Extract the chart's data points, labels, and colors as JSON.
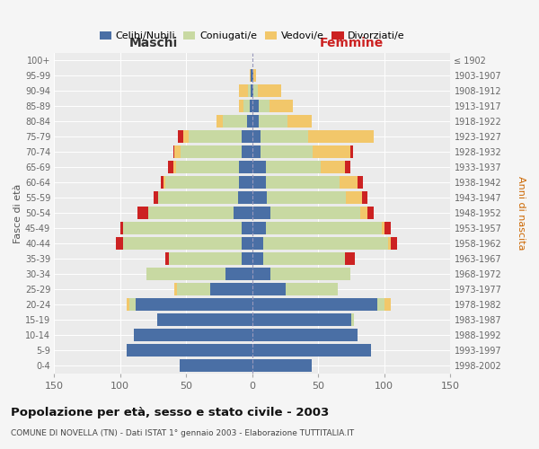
{
  "age_groups": [
    "0-4",
    "5-9",
    "10-14",
    "15-19",
    "20-24",
    "25-29",
    "30-34",
    "35-39",
    "40-44",
    "45-49",
    "50-54",
    "55-59",
    "60-64",
    "65-69",
    "70-74",
    "75-79",
    "80-84",
    "85-89",
    "90-94",
    "95-99",
    "100+"
  ],
  "birth_years": [
    "1998-2002",
    "1993-1997",
    "1988-1992",
    "1983-1987",
    "1978-1982",
    "1973-1977",
    "1968-1972",
    "1963-1967",
    "1958-1962",
    "1953-1957",
    "1948-1952",
    "1943-1947",
    "1938-1942",
    "1933-1937",
    "1928-1932",
    "1923-1927",
    "1918-1922",
    "1913-1917",
    "1908-1912",
    "1903-1907",
    "≤ 1902"
  ],
  "maschi": {
    "celibe": [
      55,
      95,
      90,
      72,
      88,
      32,
      20,
      8,
      8,
      8,
      14,
      11,
      10,
      10,
      8,
      8,
      4,
      2,
      1,
      1,
      0
    ],
    "coniugato": [
      0,
      0,
      0,
      0,
      5,
      25,
      60,
      55,
      90,
      90,
      65,
      60,
      56,
      48,
      46,
      40,
      18,
      5,
      2,
      0,
      0
    ],
    "vedovo": [
      0,
      0,
      0,
      0,
      2,
      2,
      0,
      0,
      0,
      0,
      0,
      0,
      1,
      2,
      5,
      4,
      5,
      3,
      7,
      1,
      0
    ],
    "divorziato": [
      0,
      0,
      0,
      0,
      0,
      0,
      0,
      3,
      5,
      2,
      8,
      4,
      2,
      4,
      1,
      4,
      0,
      0,
      0,
      0,
      0
    ]
  },
  "femmine": {
    "nubile": [
      45,
      90,
      80,
      75,
      95,
      25,
      14,
      8,
      8,
      10,
      14,
      11,
      10,
      10,
      6,
      6,
      5,
      5,
      1,
      1,
      0
    ],
    "coniugata": [
      0,
      0,
      0,
      2,
      5,
      40,
      60,
      62,
      95,
      88,
      68,
      60,
      56,
      42,
      40,
      36,
      22,
      8,
      3,
      0,
      0
    ],
    "vedova": [
      0,
      0,
      0,
      0,
      5,
      0,
      0,
      0,
      2,
      2,
      5,
      12,
      14,
      18,
      28,
      50,
      18,
      18,
      18,
      2,
      0
    ],
    "divorziata": [
      0,
      0,
      0,
      0,
      0,
      0,
      0,
      8,
      5,
      5,
      5,
      4,
      4,
      4,
      2,
      0,
      0,
      0,
      0,
      0,
      0
    ]
  },
  "colors": {
    "celibe_nubile": "#4a6fa5",
    "coniugato_coniugata": "#c8d9a2",
    "vedovo_vedova": "#f2c76a",
    "divorziato_divorziata": "#cc2222"
  },
  "xlim": 150,
  "title": "Popolazione per età, sesso e stato civile - 2003",
  "subtitle": "COMUNE DI NOVELLA (TN) - Dati ISTAT 1° gennaio 2003 - Elaborazione TUTTITALIA.IT",
  "xlabel_maschi": "Maschi",
  "xlabel_femmine": "Femmine",
  "ylabel": "Fasce di età",
  "ylabel_right": "Anni di nascita",
  "legend_labels": [
    "Celibi/Nubili",
    "Coniugati/e",
    "Vedovi/e",
    "Divorziati/e"
  ],
  "background_color": "#f5f5f5",
  "plot_bg": "#ebebeb"
}
